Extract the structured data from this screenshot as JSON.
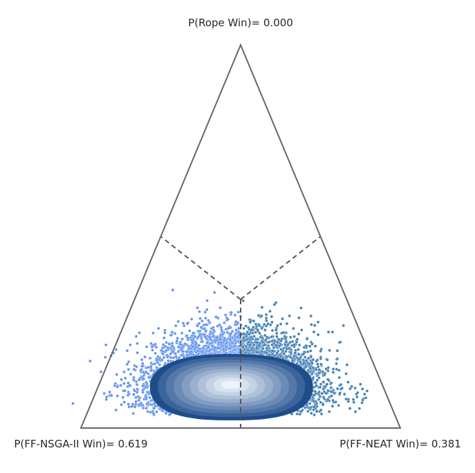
{
  "chart_data": {
    "type": "scatter",
    "plot_kind": "ternary-simplex",
    "title": "",
    "vertices": [
      {
        "key": "rope",
        "label": "P(Rope Win)= 0.000",
        "probability": 0.0,
        "position": "top"
      },
      {
        "key": "left",
        "label": "P(FF-NSGA-II Win)= 0.619",
        "probability": 0.619,
        "position": "bottom-left"
      },
      {
        "key": "right",
        "label": "P(FF-NEAT Win)= 0.381",
        "probability": 0.381,
        "position": "bottom-right"
      }
    ],
    "grid": false,
    "region_boundaries": "dashed lines from centroid to edge midpoints",
    "series": [
      {
        "color": "#6495ed",
        "region": "FF-NSGA-II",
        "point_count_approx": 5000
      },
      {
        "color": "#4682b4",
        "region": "FF-NEAT",
        "point_count_approx": 3000
      }
    ],
    "density": {
      "center": {
        "rope": 0.15,
        "left": 0.43,
        "right": 0.42
      },
      "contour_levels": 10,
      "colormap": [
        "#1e4d8c",
        "#eef4fb"
      ]
    }
  },
  "colors": {
    "triangle": "#666666",
    "divider": "#555555",
    "label_text": "#262626",
    "left_points": "#6495ed",
    "right_points": "#4682b4"
  }
}
